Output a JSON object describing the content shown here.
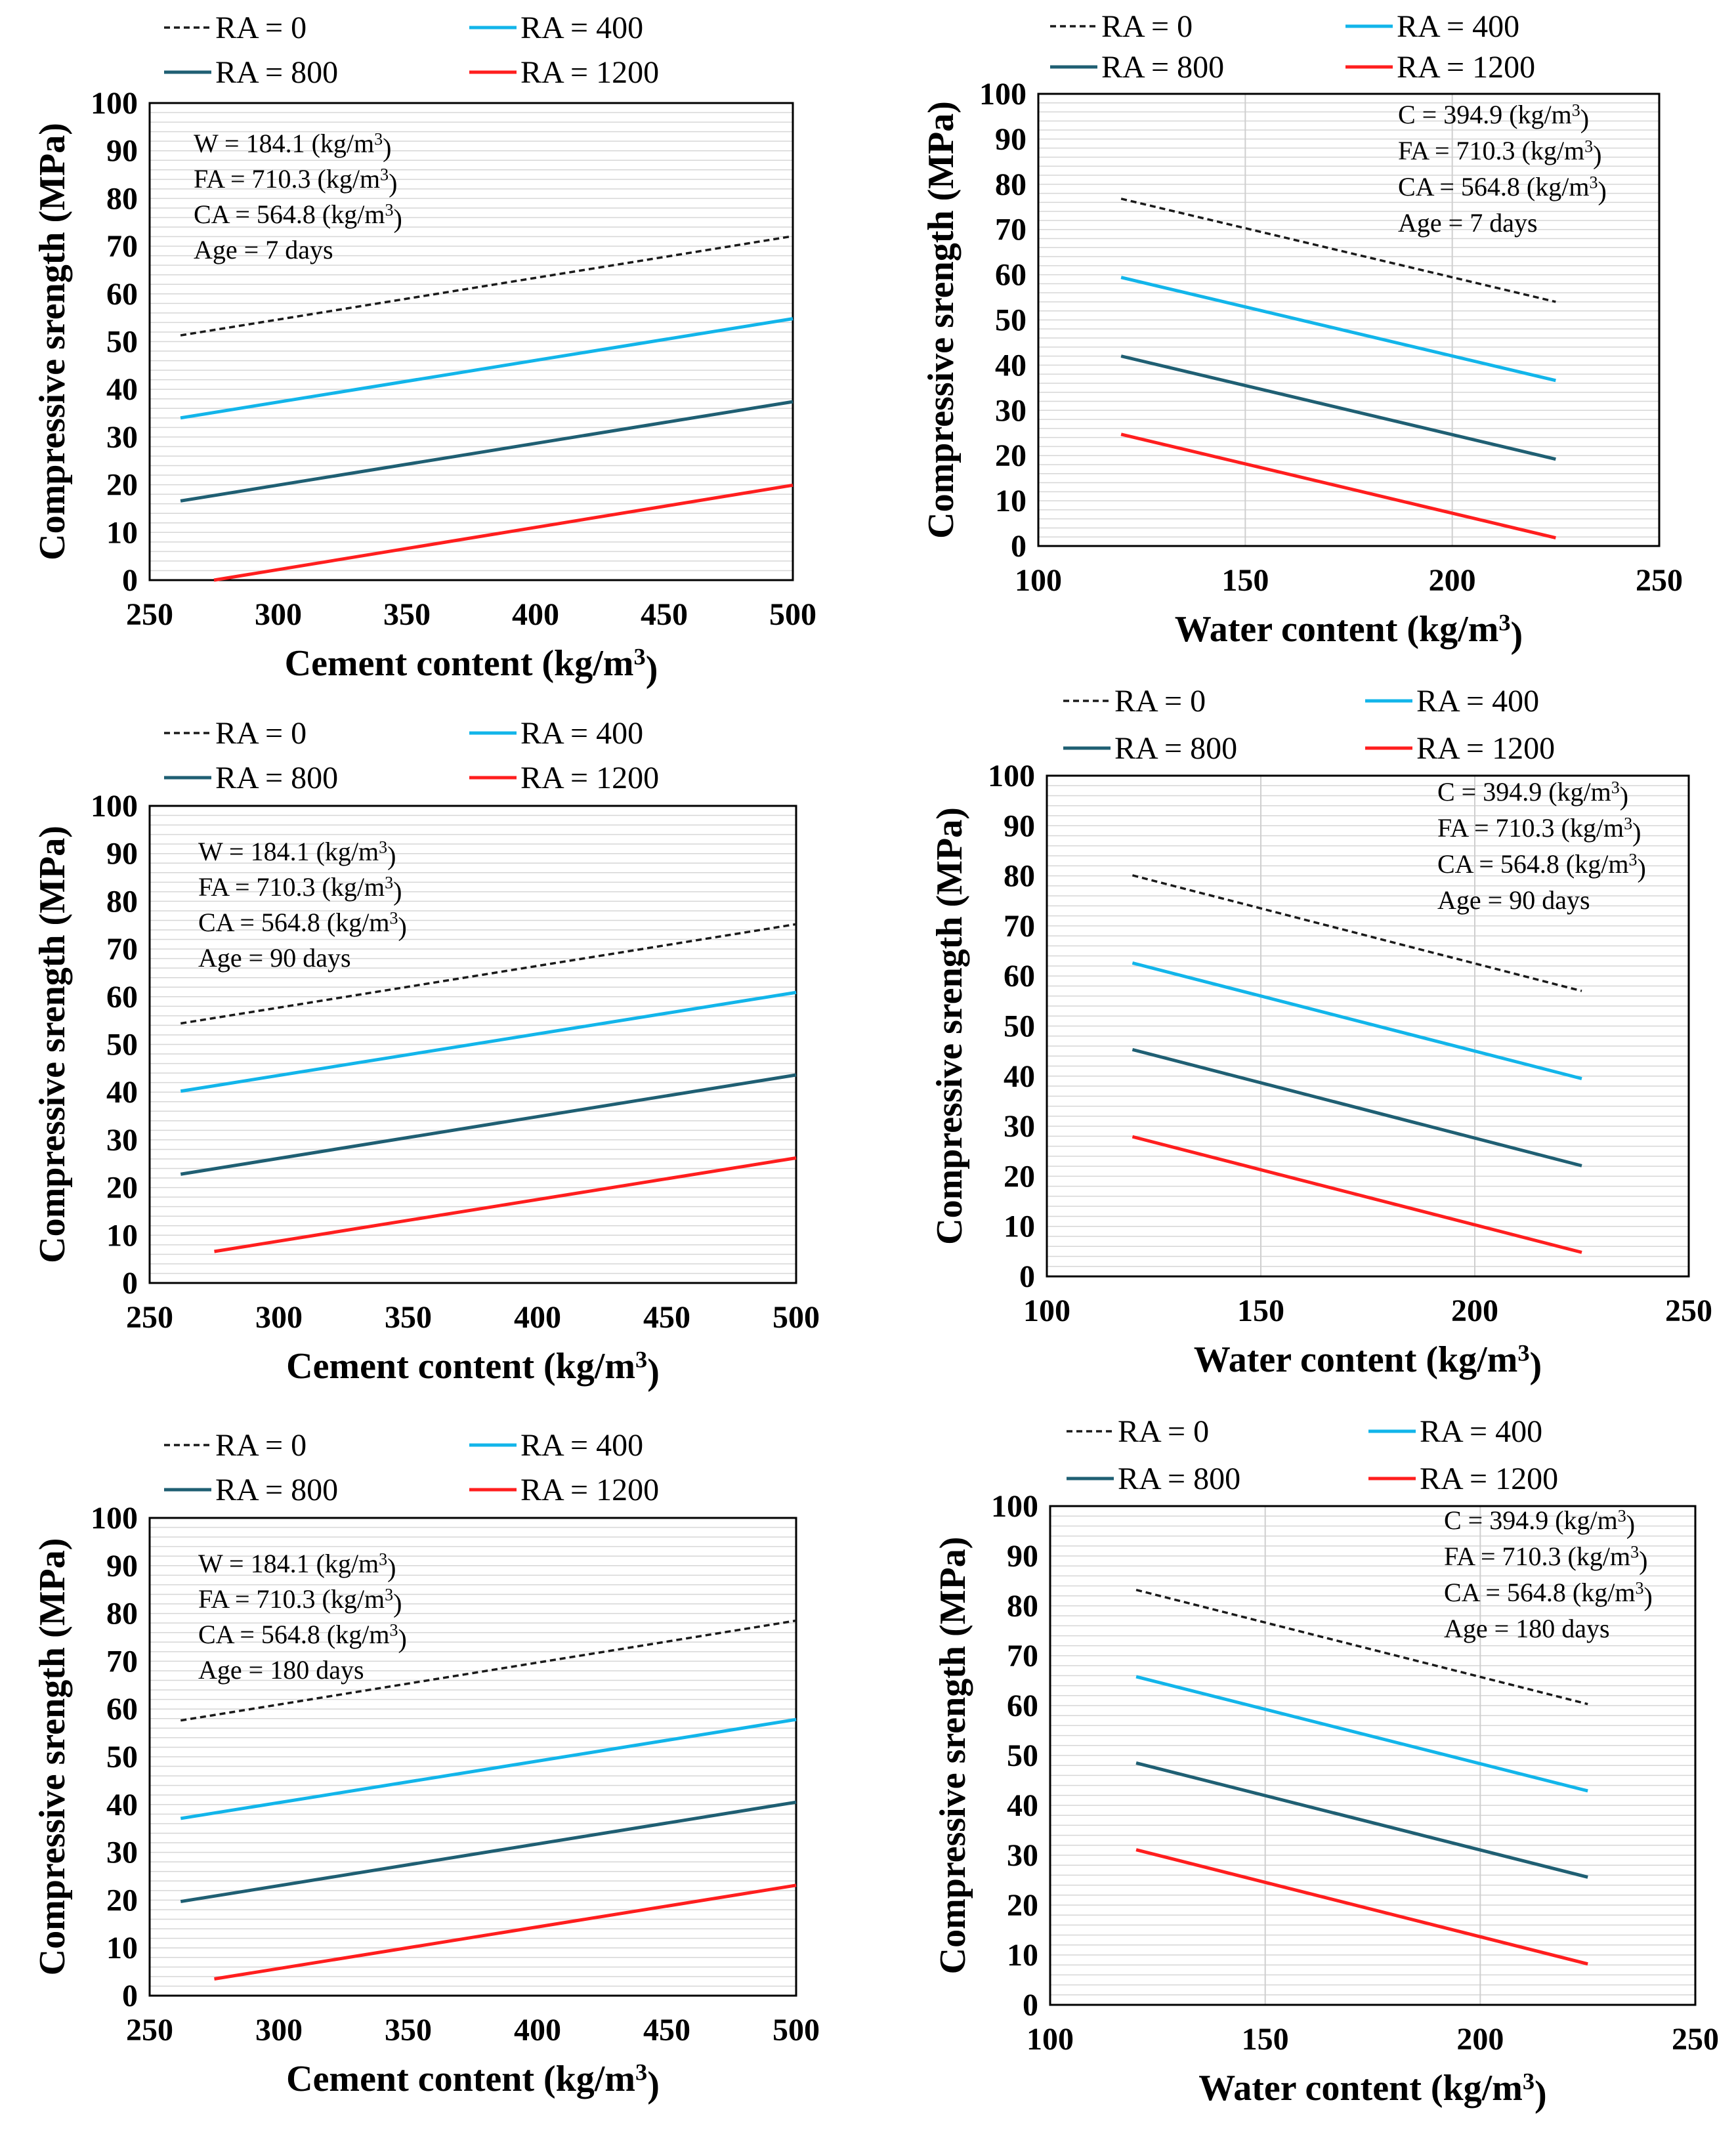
{
  "figure": {
    "series_legend": [
      {
        "name": "RA = 0",
        "color": "#1a1a1a",
        "dash": true
      },
      {
        "name": "RA = 400",
        "color": "#12b5ea",
        "dash": false
      },
      {
        "name": "RA = 800",
        "color": "#1f5f73",
        "dash": false
      },
      {
        "name": "RA = 1200",
        "color": "#ff1e1e",
        "dash": false
      }
    ]
  },
  "chart_data": [
    {
      "type": "line",
      "title": "",
      "xlabel": "Cement content (kg/m³)",
      "ylabel": "Compressive srength (MPa)",
      "xlim": [
        250,
        500
      ],
      "ylim": [
        0,
        100
      ],
      "xticks": [
        "250",
        "300",
        "350",
        "400",
        "450",
        "500"
      ],
      "yticks": [
        "0",
        "10",
        "20",
        "30",
        "40",
        "50",
        "60",
        "70",
        "80",
        "90",
        "100"
      ],
      "grid": "horizontal minor",
      "legend": "top",
      "annotation": [
        "W = 184.1 (kg/m³)",
        "FA = 710.3 (kg/m³)",
        "CA = 564.8 (kg/m³)",
        "Age = 7 days"
      ],
      "series": [
        {
          "name": "RA = 0",
          "x": [
            262,
            500
          ],
          "y": [
            51.3,
            72.1
          ]
        },
        {
          "name": "RA = 400",
          "x": [
            262,
            500
          ],
          "y": [
            34,
            54.8
          ]
        },
        {
          "name": "RA = 800",
          "x": [
            262,
            500
          ],
          "y": [
            16.6,
            37.4
          ]
        },
        {
          "name": "RA = 1200",
          "x": [
            275,
            500
          ],
          "y": [
            0,
            19.9
          ]
        }
      ]
    },
    {
      "type": "line",
      "title": "",
      "xlabel": "Water content (kg/m³)",
      "ylabel": "Compressive srength (MPa)",
      "xlim": [
        100,
        250
      ],
      "ylim": [
        0,
        100
      ],
      "xticks": [
        "100",
        "150",
        "200",
        "250"
      ],
      "yticks": [
        "0",
        "10",
        "20",
        "30",
        "40",
        "50",
        "60",
        "70",
        "80",
        "90",
        "100"
      ],
      "grid": "horizontal minor + vertical major",
      "legend": "top",
      "annotation": [
        "C = 394.9 (kg/m³)",
        "FA = 710.3 (kg/m³)",
        "CA = 564.8 (kg/m³)",
        "Age = 7 days"
      ],
      "series": [
        {
          "name": "RA = 0",
          "x": [
            120,
            225
          ],
          "y": [
            76.8,
            54
          ]
        },
        {
          "name": "RA = 400",
          "x": [
            120,
            225
          ],
          "y": [
            59.4,
            36.6
          ]
        },
        {
          "name": "RA = 800",
          "x": [
            120,
            225
          ],
          "y": [
            42,
            19.2
          ]
        },
        {
          "name": "RA = 1200",
          "x": [
            120,
            225
          ],
          "y": [
            24.7,
            1.8
          ]
        }
      ]
    },
    {
      "type": "line",
      "title": "",
      "xlabel": "Cement content (kg/m³)",
      "ylabel": "Compressive srength (MPa)",
      "xlim": [
        250,
        500
      ],
      "ylim": [
        0,
        100
      ],
      "xticks": [
        "250",
        "300",
        "350",
        "400",
        "450",
        "500"
      ],
      "yticks": [
        "0",
        "10",
        "20",
        "30",
        "40",
        "50",
        "60",
        "70",
        "80",
        "90",
        "100"
      ],
      "grid": "horizontal minor",
      "legend": "top",
      "annotation": [
        "W = 184.1 (kg/m³)",
        "FA = 710.3 (kg/m³)",
        "CA = 564.8 (kg/m³)",
        "Age = 90 days"
      ],
      "series": [
        {
          "name": "RA = 0",
          "x": [
            262,
            500
          ],
          "y": [
            54.4,
            75.2
          ]
        },
        {
          "name": "RA = 400",
          "x": [
            262,
            500
          ],
          "y": [
            40.2,
            60.9
          ]
        },
        {
          "name": "RA = 800",
          "x": [
            262,
            500
          ],
          "y": [
            22.8,
            43.6
          ]
        },
        {
          "name": "RA = 1200",
          "x": [
            275,
            500
          ],
          "y": [
            6.6,
            26.2
          ]
        }
      ]
    },
    {
      "type": "line",
      "title": "",
      "xlabel": "Water content (kg/m³)",
      "ylabel": "Compressive srength (MPa)",
      "xlim": [
        100,
        250
      ],
      "ylim": [
        0,
        100
      ],
      "xticks": [
        "100",
        "150",
        "200",
        "250"
      ],
      "yticks": [
        "0",
        "10",
        "20",
        "30",
        "40",
        "50",
        "60",
        "70",
        "80",
        "90",
        "100"
      ],
      "grid": "horizontal minor + vertical major",
      "legend": "top",
      "annotation": [
        "C = 394.9 (kg/m³)",
        "FA = 710.3 (kg/m³)",
        "CA = 564.8 (kg/m³)",
        "Age = 90 days"
      ],
      "series": [
        {
          "name": "RA = 0",
          "x": [
            120,
            225
          ],
          "y": [
            80.1,
            57
          ]
        },
        {
          "name": "RA = 400",
          "x": [
            120,
            225
          ],
          "y": [
            62.6,
            39.5
          ]
        },
        {
          "name": "RA = 800",
          "x": [
            120,
            225
          ],
          "y": [
            45.3,
            22.1
          ]
        },
        {
          "name": "RA = 1200",
          "x": [
            120,
            225
          ],
          "y": [
            27.9,
            4.8
          ]
        }
      ]
    },
    {
      "type": "line",
      "title": "",
      "xlabel": "Cement content (kg/m³)",
      "ylabel": "Compressive srength (MPa)",
      "xlim": [
        250,
        500
      ],
      "ylim": [
        0,
        100
      ],
      "xticks": [
        "250",
        "300",
        "350",
        "400",
        "450",
        "500"
      ],
      "yticks": [
        "0",
        "10",
        "20",
        "30",
        "40",
        "50",
        "60",
        "70",
        "80",
        "90",
        "100"
      ],
      "grid": "horizontal minor",
      "legend": "top",
      "annotation": [
        "W = 184.1 (kg/m³)",
        "FA = 710.3 (kg/m³)",
        "CA = 564.8 (kg/m³)",
        "Age = 180 days"
      ],
      "series": [
        {
          "name": "RA = 0",
          "x": [
            262,
            500
          ],
          "y": [
            57.6,
            78.5
          ]
        },
        {
          "name": "RA = 400",
          "x": [
            262,
            500
          ],
          "y": [
            37.1,
            57.8
          ]
        },
        {
          "name": "RA = 800",
          "x": [
            262,
            500
          ],
          "y": [
            19.7,
            40.5
          ]
        },
        {
          "name": "RA = 1200",
          "x": [
            275,
            500
          ],
          "y": [
            3.5,
            23.1
          ]
        }
      ]
    },
    {
      "type": "line",
      "title": "",
      "xlabel": "Water content (kg/m³)",
      "ylabel": "Compressive srength (MPa)",
      "xlim": [
        100,
        250
      ],
      "ylim": [
        0,
        100
      ],
      "xticks": [
        "100",
        "150",
        "200",
        "250"
      ],
      "yticks": [
        "0",
        "10",
        "20",
        "30",
        "40",
        "50",
        "60",
        "70",
        "80",
        "90",
        "100"
      ],
      "grid": "horizontal minor + vertical major",
      "legend": "top",
      "annotation": [
        "C = 394.9 (kg/m³)",
        "FA = 710.3 (kg/m³)",
        "CA = 564.8 (kg/m³)",
        "Age = 180 days"
      ],
      "series": [
        {
          "name": "RA = 0",
          "x": [
            120,
            225
          ],
          "y": [
            83.2,
            60.3
          ]
        },
        {
          "name": "RA = 400",
          "x": [
            120,
            225
          ],
          "y": [
            65.8,
            42.9
          ]
        },
        {
          "name": "RA = 800",
          "x": [
            120,
            225
          ],
          "y": [
            48.5,
            25.6
          ]
        },
        {
          "name": "RA = 1200",
          "x": [
            120,
            225
          ],
          "y": [
            31.1,
            8.2
          ]
        }
      ]
    }
  ]
}
